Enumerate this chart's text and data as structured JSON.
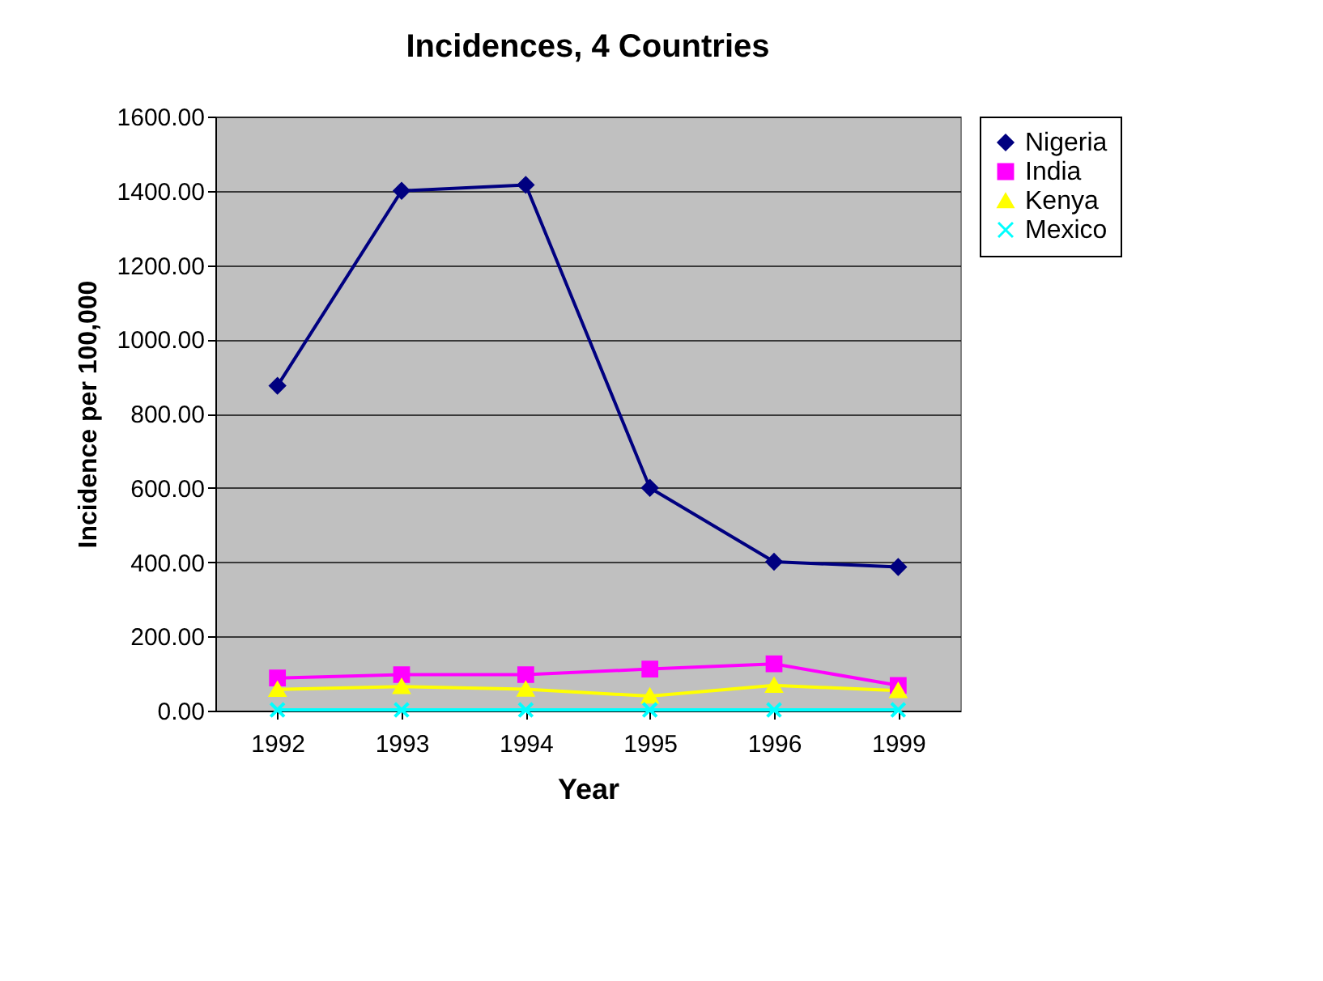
{
  "chart_data": {
    "type": "line",
    "title": "Incidences, 4 Countries",
    "xlabel": "Year",
    "ylabel": "Incidence per 100,000",
    "categories": [
      "1992",
      "1993",
      "1994",
      "1995",
      "1996",
      "1999"
    ],
    "series": [
      {
        "name": "Nigeria",
        "color": "#000080",
        "marker": "diamond",
        "values": [
          875,
          1400,
          1416,
          600,
          401,
          387
        ]
      },
      {
        "name": "India",
        "color": "#ff00ff",
        "marker": "square",
        "values": [
          88,
          97,
          97,
          112,
          126,
          68
        ]
      },
      {
        "name": "Kenya",
        "color": "#ffff00",
        "marker": "triangle",
        "values": [
          57,
          65,
          58,
          39,
          68,
          54
        ]
      },
      {
        "name": "Mexico",
        "color": "#00ffff",
        "marker": "cross",
        "values": [
          2,
          2,
          2,
          2,
          2,
          2
        ]
      }
    ],
    "ylim": [
      0,
      1600
    ],
    "yticks": [
      {
        "value": 0,
        "label": "0.00"
      },
      {
        "value": 200,
        "label": "200.00"
      },
      {
        "value": 400,
        "label": "400.00"
      },
      {
        "value": 600,
        "label": "600.00"
      },
      {
        "value": 800,
        "label": "800.00"
      },
      {
        "value": 1000,
        "label": "1000.00"
      },
      {
        "value": 1200,
        "label": "1200.00"
      },
      {
        "value": 1400,
        "label": "1400.00"
      },
      {
        "value": 1600,
        "label": "1600.00"
      }
    ],
    "grid": "y",
    "legend": "right",
    "line_style": "solid"
  }
}
